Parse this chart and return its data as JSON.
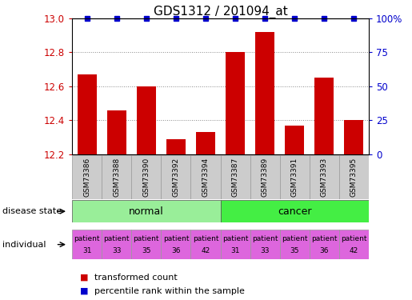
{
  "title": "GDS1312 / 201094_at",
  "samples": [
    "GSM73386",
    "GSM73388",
    "GSM73390",
    "GSM73392",
    "GSM73394",
    "GSM73387",
    "GSM73389",
    "GSM73391",
    "GSM73393",
    "GSM73395"
  ],
  "transformed_counts": [
    12.67,
    12.46,
    12.6,
    12.29,
    12.33,
    12.8,
    12.92,
    12.37,
    12.65,
    12.4
  ],
  "percentile_ranks": [
    100,
    100,
    100,
    100,
    100,
    100,
    100,
    100,
    100,
    100
  ],
  "ylim": [
    12.2,
    13.0
  ],
  "y_ticks": [
    12.2,
    12.4,
    12.6,
    12.8,
    13.0
  ],
  "right_y_ticks": [
    0,
    25,
    50,
    75,
    100
  ],
  "bar_color": "#cc0000",
  "marker_color": "#0000cc",
  "disease_groups": [
    {
      "label": "normal",
      "start": 0,
      "end": 5,
      "color": "#99ee99"
    },
    {
      "label": "cancer",
      "start": 5,
      "end": 10,
      "color": "#44ee44"
    }
  ],
  "individuals": [
    {
      "label": "patient\n31",
      "color": "#dd66dd"
    },
    {
      "label": "patient\n33",
      "color": "#dd66dd"
    },
    {
      "label": "patient\n35",
      "color": "#dd66dd"
    },
    {
      "label": "patient\n36",
      "color": "#dd66dd"
    },
    {
      "label": "patient\n42",
      "color": "#dd66dd"
    },
    {
      "label": "patient\n31",
      "color": "#dd66dd"
    },
    {
      "label": "patient\n33",
      "color": "#dd66dd"
    },
    {
      "label": "patient\n35",
      "color": "#dd66dd"
    },
    {
      "label": "patient\n36",
      "color": "#dd66dd"
    },
    {
      "label": "patient\n42",
      "color": "#dd66dd"
    }
  ],
  "legend_items": [
    {
      "label": "transformed count",
      "color": "#cc0000"
    },
    {
      "label": "percentile rank within the sample",
      "color": "#0000cc"
    }
  ],
  "disease_state_label": "disease state",
  "individual_label": "individual",
  "tick_label_color": "#cc0000",
  "right_tick_label_color": "#0000cc",
  "grid_color": "#888888",
  "sample_box_color": "#cccccc",
  "title_fontsize": 11,
  "bar_width": 0.65
}
